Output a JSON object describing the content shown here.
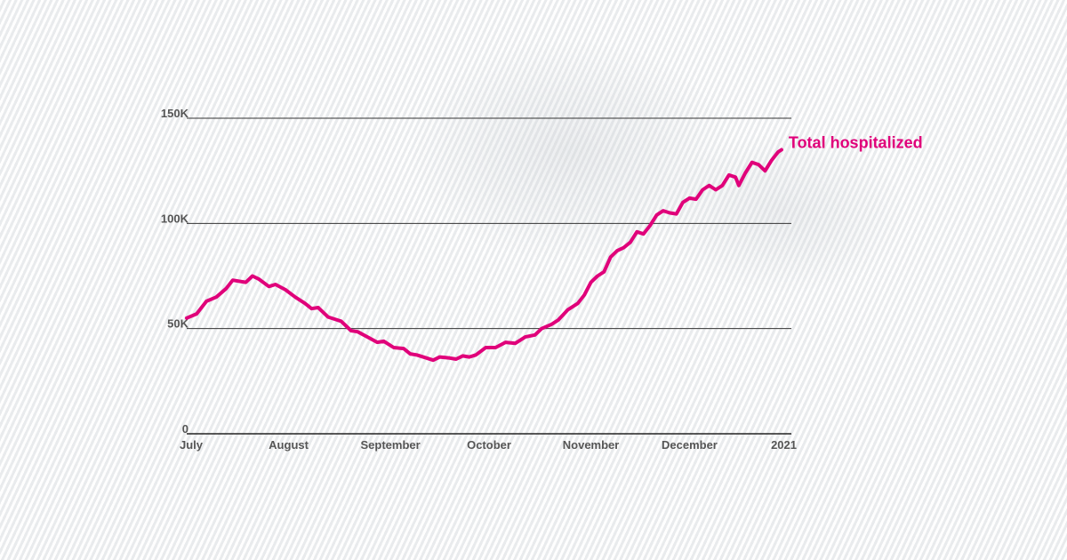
{
  "chart_data": {
    "type": "line",
    "title": "",
    "xlabel": "",
    "ylabel": "",
    "ylim": [
      0,
      150000
    ],
    "y_ticks": [
      {
        "value": 0,
        "label": "0"
      },
      {
        "value": 50000,
        "label": "50K"
      },
      {
        "value": 100000,
        "label": "100K"
      },
      {
        "value": 150000,
        "label": "150K"
      }
    ],
    "x_ticks": [
      {
        "day": 0,
        "label": "July"
      },
      {
        "day": 31,
        "label": "August"
      },
      {
        "day": 62,
        "label": "September"
      },
      {
        "day": 92,
        "label": "October"
      },
      {
        "day": 123,
        "label": "November"
      },
      {
        "day": 153,
        "label": "December"
      },
      {
        "day": 184,
        "label": "2021"
      }
    ],
    "series": [
      {
        "name": "Total hospitalized",
        "color": "#e0007a",
        "points": [
          [
            0,
            55000
          ],
          [
            3,
            57000
          ],
          [
            6,
            63000
          ],
          [
            9,
            65000
          ],
          [
            12,
            69000
          ],
          [
            14,
            73000
          ],
          [
            18,
            72000
          ],
          [
            20,
            75000
          ],
          [
            22,
            73500
          ],
          [
            25,
            70000
          ],
          [
            27,
            71000
          ],
          [
            30,
            68500
          ],
          [
            33,
            65000
          ],
          [
            36,
            62000
          ],
          [
            38,
            59500
          ],
          [
            40,
            60000
          ],
          [
            43,
            55500
          ],
          [
            45,
            54500
          ],
          [
            47,
            53500
          ],
          [
            50,
            49000
          ],
          [
            52,
            48500
          ],
          [
            55,
            46000
          ],
          [
            58,
            43500
          ],
          [
            60,
            44000
          ],
          [
            63,
            41000
          ],
          [
            66,
            40500
          ],
          [
            68,
            38000
          ],
          [
            70,
            37500
          ],
          [
            73,
            36000
          ],
          [
            75,
            35000
          ],
          [
            77,
            36500
          ],
          [
            80,
            36000
          ],
          [
            82,
            35500
          ],
          [
            84,
            37000
          ],
          [
            86,
            36500
          ],
          [
            88,
            37500
          ],
          [
            91,
            41000
          ],
          [
            94,
            41000
          ],
          [
            97,
            43500
          ],
          [
            100,
            43000
          ],
          [
            103,
            46000
          ],
          [
            106,
            47000
          ],
          [
            108,
            50000
          ],
          [
            111,
            52000
          ],
          [
            113,
            54000
          ],
          [
            116,
            59000
          ],
          [
            119,
            62000
          ],
          [
            121,
            66000
          ],
          [
            123,
            72000
          ],
          [
            125,
            75000
          ],
          [
            127,
            77000
          ],
          [
            129,
            84000
          ],
          [
            131,
            87000
          ],
          [
            133,
            88500
          ],
          [
            135,
            91000
          ],
          [
            137,
            96000
          ],
          [
            139,
            95000
          ],
          [
            141,
            99000
          ],
          [
            143,
            104000
          ],
          [
            145,
            106000
          ],
          [
            147,
            105000
          ],
          [
            149,
            104500
          ],
          [
            151,
            110000
          ],
          [
            153,
            112000
          ],
          [
            155,
            111500
          ],
          [
            157,
            116000
          ],
          [
            159,
            118000
          ],
          [
            161,
            116000
          ],
          [
            163,
            118000
          ],
          [
            165,
            123000
          ],
          [
            167,
            122000
          ],
          [
            168,
            118000
          ],
          [
            170,
            124000
          ],
          [
            172,
            129000
          ],
          [
            174,
            128000
          ],
          [
            176,
            125000
          ],
          [
            178,
            130000
          ],
          [
            180,
            134000
          ],
          [
            181,
            135000
          ]
        ]
      }
    ]
  }
}
